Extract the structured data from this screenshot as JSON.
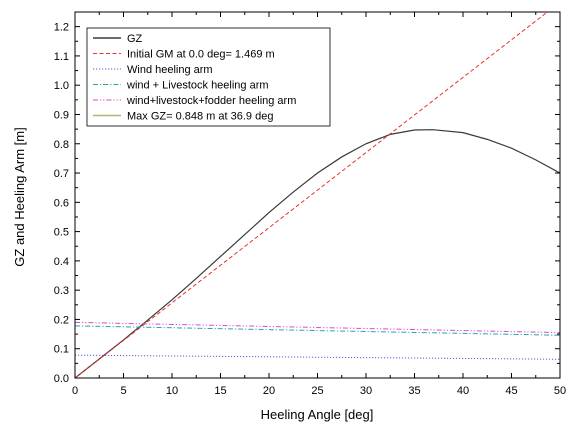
{
  "chart_data": {
    "type": "line",
    "xlabel": "Heeling Angle [deg]",
    "ylabel": "GZ and Heeling Arm [m]",
    "xlim": [
      0,
      50
    ],
    "ylim": [
      0,
      1.25
    ],
    "x_ticks": [
      0,
      5,
      10,
      15,
      20,
      25,
      30,
      35,
      40,
      45,
      50
    ],
    "y_ticks": [
      0.0,
      0.1,
      0.2,
      0.3,
      0.4,
      0.5,
      0.6,
      0.7,
      0.8,
      0.9,
      1.0,
      1.1,
      1.2
    ],
    "x_tick_labels": [
      "0",
      "5",
      "10",
      "15",
      "20",
      "25",
      "30",
      "35",
      "40",
      "45",
      "50"
    ],
    "y_tick_labels": [
      "0.0",
      "0.1",
      "0.2",
      "0.3",
      "0.4",
      "0.5",
      "0.6",
      "0.7",
      "0.8",
      "0.9",
      "1.0",
      "1.1",
      "1.2"
    ],
    "grid": false,
    "legend_position": "top-left",
    "series": [
      {
        "name": "GZ",
        "color": "#3a3a3a",
        "style": "solid",
        "x": [
          0,
          2.5,
          5,
          7.5,
          10,
          12.5,
          15,
          17.5,
          20,
          22.5,
          25,
          27.5,
          30,
          32.5,
          35,
          36.9,
          40,
          42.5,
          45,
          47.5,
          50
        ],
        "y": [
          0,
          0.065,
          0.13,
          0.198,
          0.267,
          0.34,
          0.415,
          0.49,
          0.565,
          0.635,
          0.7,
          0.755,
          0.8,
          0.832,
          0.847,
          0.848,
          0.838,
          0.815,
          0.785,
          0.745,
          0.7
        ]
      },
      {
        "name": "Initial GM at 0.0 deg= 1.469 m",
        "color": "#e8322d",
        "style": "dashed",
        "x": [
          0,
          48.7
        ],
        "y": [
          0,
          1.25
        ]
      },
      {
        "name": "Wind heeling arm",
        "color": "#5b5bd6",
        "style": "dotted",
        "x": [
          0,
          50
        ],
        "y": [
          0.078,
          0.064
        ]
      },
      {
        "name": "wind + Livestock heeling arm",
        "color": "#2aa6a0",
        "style": "dashdot",
        "x": [
          0,
          50
        ],
        "y": [
          0.178,
          0.146
        ]
      },
      {
        "name": "wind+livestock+fodder heeling arm",
        "color": "#d64bd6",
        "style": "dashdotdot",
        "x": [
          0,
          50
        ],
        "y": [
          0.19,
          0.155
        ]
      },
      {
        "name": "Max GZ= 0.848 m at 36.9 deg",
        "color": "#b4b470",
        "style": "solid",
        "x": [],
        "y": []
      }
    ]
  }
}
